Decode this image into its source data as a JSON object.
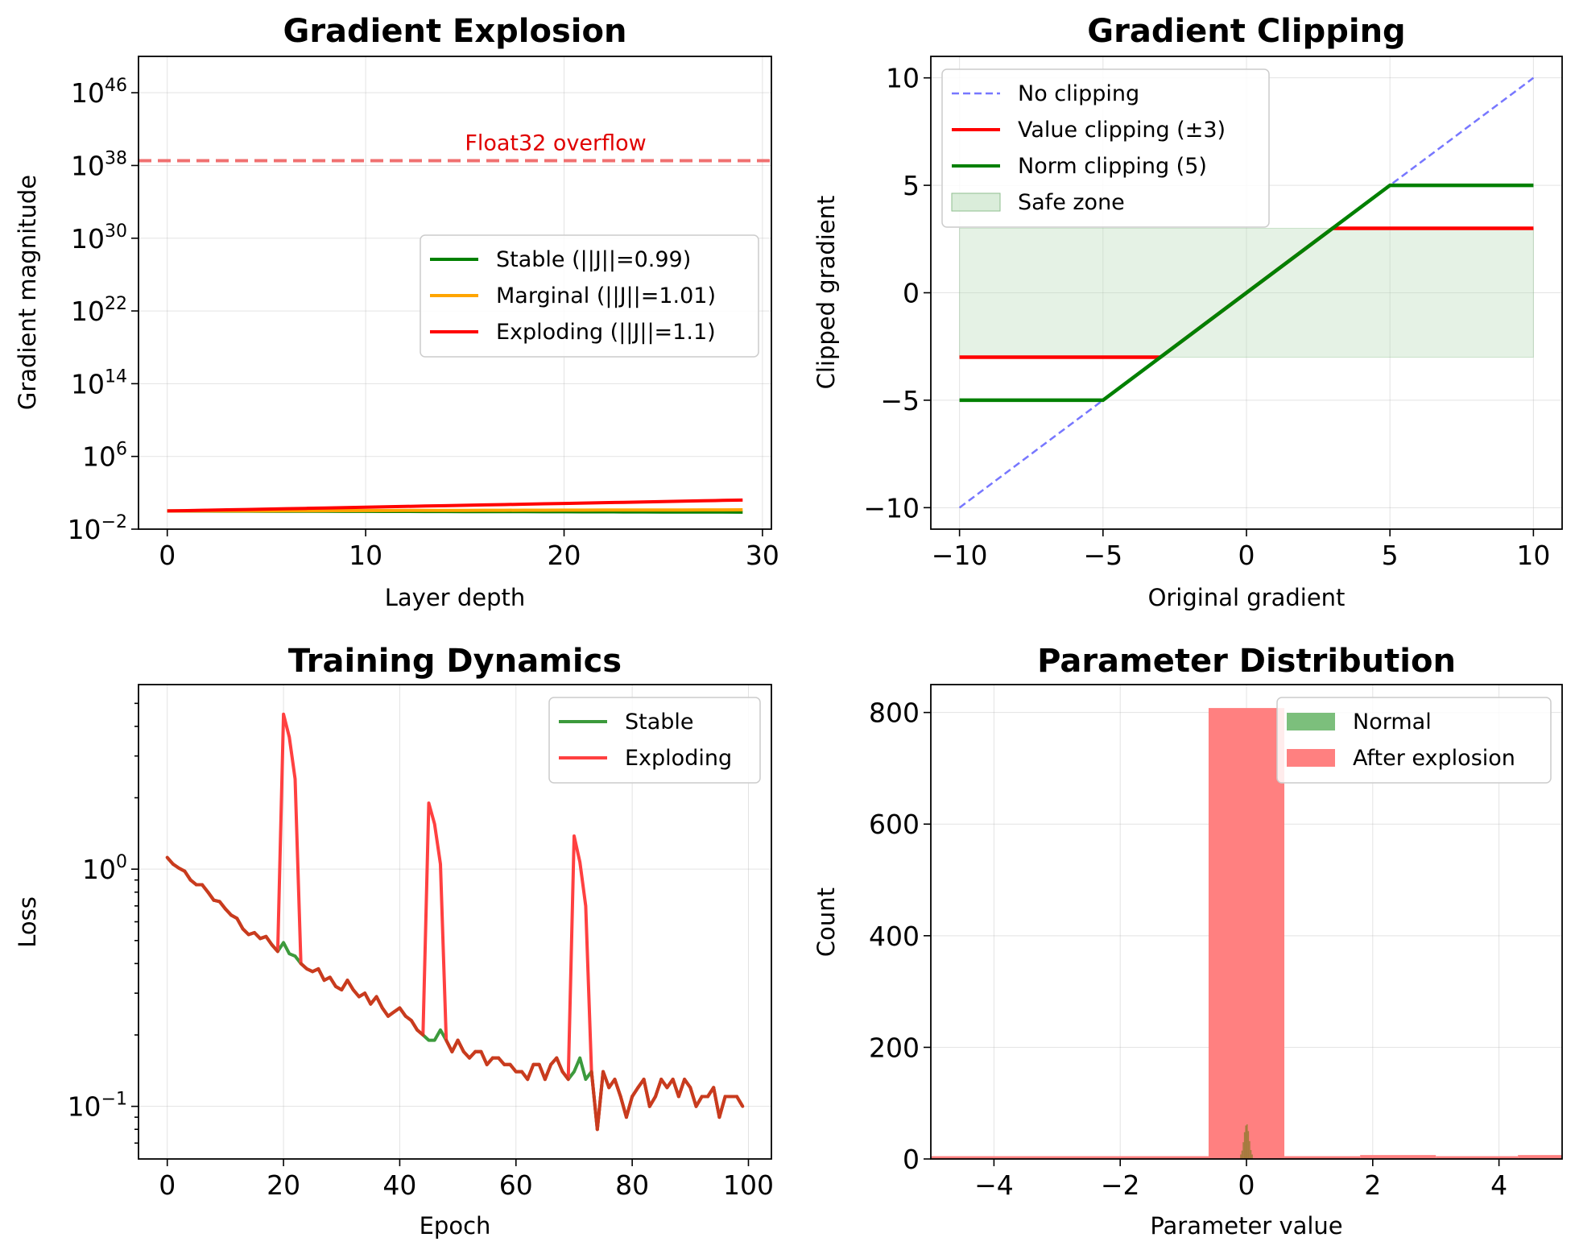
{
  "chart_data": [
    {
      "id": "explosion",
      "type": "line",
      "title": "Gradient Explosion",
      "xlabel": "Layer depth",
      "ylabel": "Gradient magnitude",
      "yscale": "log",
      "xlim": [
        -1.45,
        30.45
      ],
      "ylim_exp": [
        -2,
        50
      ],
      "xticks": [
        {
          "v": 0,
          "label": "0"
        },
        {
          "v": 10,
          "label": "10"
        },
        {
          "v": 20,
          "label": "20"
        },
        {
          "v": 30,
          "label": "30"
        }
      ],
      "yticks": [
        {
          "e": -2,
          "base": "10",
          "exp": "−2"
        },
        {
          "e": 6,
          "base": "10",
          "exp": "6"
        },
        {
          "e": 14,
          "base": "10",
          "exp": "14"
        },
        {
          "e": 22,
          "base": "10",
          "exp": "22"
        },
        {
          "e": 30,
          "base": "10",
          "exp": "30"
        },
        {
          "e": 38,
          "base": "10",
          "exp": "38"
        },
        {
          "e": 46,
          "base": "10",
          "exp": "46"
        }
      ],
      "x": [
        0,
        29
      ],
      "series": [
        {
          "name": "Stable (||J||=0.99)",
          "color": "#008000",
          "base": 0.99
        },
        {
          "name": "Marginal (||J||=1.01)",
          "color": "#ffa500",
          "base": 1.01
        },
        {
          "name": "Exploding (||J||=1.1)",
          "color": "#ff0000",
          "base": 1.1
        }
      ],
      "hline": {
        "value_exp": 38.53,
        "color": "#f07070",
        "label": "Float32 overflow",
        "label_x": 15
      },
      "legend": {
        "position": "center-right"
      }
    },
    {
      "id": "clipping",
      "type": "line",
      "title": "Gradient Clipping",
      "xlabel": "Original gradient",
      "ylabel": "Clipped gradient",
      "xlim": [
        -11,
        11
      ],
      "ylim": [
        -11,
        11
      ],
      "xticks": [
        {
          "v": -10,
          "label": "−10"
        },
        {
          "v": -5,
          "label": "−5"
        },
        {
          "v": 0,
          "label": "0"
        },
        {
          "v": 5,
          "label": "5"
        },
        {
          "v": 10,
          "label": "10"
        }
      ],
      "yticks": [
        {
          "v": -10,
          "label": "−10"
        },
        {
          "v": -5,
          "label": "−5"
        },
        {
          "v": 0,
          "label": "0"
        },
        {
          "v": 5,
          "label": "5"
        },
        {
          "v": 10,
          "label": "10"
        }
      ],
      "x": [
        -10,
        10
      ],
      "series": [
        {
          "name": "No clipping",
          "color": "#7777ff",
          "style": "dashed",
          "clip": null
        },
        {
          "name": "Value clipping (±3)",
          "color": "#ff0000",
          "style": "solid",
          "clip": 3
        },
        {
          "name": "Norm clipping (5)",
          "color": "#008000",
          "style": "solid",
          "clip": 5
        }
      ],
      "band": {
        "name": "Safe zone",
        "low": -3,
        "high": 3,
        "color": "#b5dbb5"
      },
      "legend": {
        "position": "top-left"
      }
    },
    {
      "id": "training",
      "type": "line",
      "title": "Training Dynamics",
      "xlabel": "Epoch",
      "ylabel": "Loss",
      "yscale": "log",
      "xlim": [
        -4.95,
        103.95
      ],
      "ylim": [
        0.06,
        6.0
      ],
      "xticks": [
        {
          "v": 0,
          "label": "0"
        },
        {
          "v": 20,
          "label": "20"
        },
        {
          "v": 40,
          "label": "40"
        },
        {
          "v": 60,
          "label": "60"
        },
        {
          "v": 80,
          "label": "80"
        },
        {
          "v": 100,
          "label": "100"
        }
      ],
      "yticks": [
        {
          "v": 0.1,
          "base": "10",
          "exp": "−1"
        },
        {
          "v": 1.0,
          "base": "10",
          "exp": "0"
        }
      ],
      "series": [
        {
          "name": "Stable",
          "color": "#3c9a3c",
          "values": [
            1.12,
            1.05,
            1.01,
            0.98,
            0.9,
            0.86,
            0.86,
            0.8,
            0.74,
            0.73,
            0.68,
            0.64,
            0.62,
            0.56,
            0.53,
            0.54,
            0.51,
            0.52,
            0.48,
            0.45,
            0.49,
            0.44,
            0.43,
            0.4,
            0.38,
            0.37,
            0.38,
            0.34,
            0.35,
            0.32,
            0.31,
            0.34,
            0.31,
            0.29,
            0.3,
            0.27,
            0.29,
            0.26,
            0.24,
            0.25,
            0.26,
            0.24,
            0.23,
            0.21,
            0.2,
            0.19,
            0.19,
            0.21,
            0.19,
            0.17,
            0.19,
            0.17,
            0.16,
            0.17,
            0.17,
            0.15,
            0.16,
            0.16,
            0.15,
            0.15,
            0.14,
            0.14,
            0.13,
            0.15,
            0.15,
            0.13,
            0.15,
            0.16,
            0.14,
            0.13,
            0.14,
            0.16,
            0.13,
            0.14,
            0.08,
            0.14,
            0.12,
            0.13,
            0.11,
            0.09,
            0.11,
            0.12,
            0.13,
            0.1,
            0.11,
            0.13,
            0.12,
            0.13,
            0.11,
            0.13,
            0.12,
            0.1,
            0.11,
            0.11,
            0.12,
            0.09,
            0.11,
            0.11,
            0.11,
            0.1
          ]
        },
        {
          "name": "Exploding",
          "color": "#ff4040",
          "values": [
            1.12,
            1.05,
            1.01,
            0.98,
            0.9,
            0.86,
            0.86,
            0.8,
            0.74,
            0.73,
            0.68,
            0.64,
            0.62,
            0.56,
            0.53,
            0.54,
            0.51,
            0.52,
            0.48,
            0.45,
            4.5,
            3.6,
            2.4,
            0.4,
            0.38,
            0.37,
            0.38,
            0.34,
            0.35,
            0.32,
            0.31,
            0.34,
            0.31,
            0.29,
            0.3,
            0.27,
            0.29,
            0.26,
            0.24,
            0.25,
            0.26,
            0.24,
            0.23,
            0.21,
            0.2,
            1.9,
            1.55,
            1.05,
            0.19,
            0.17,
            0.19,
            0.17,
            0.16,
            0.17,
            0.17,
            0.15,
            0.16,
            0.16,
            0.15,
            0.15,
            0.14,
            0.14,
            0.13,
            0.15,
            0.15,
            0.13,
            0.15,
            0.16,
            0.14,
            0.13,
            1.38,
            1.07,
            0.7,
            0.14,
            0.08,
            0.14,
            0.12,
            0.13,
            0.11,
            0.09,
            0.11,
            0.12,
            0.13,
            0.1,
            0.11,
            0.13,
            0.12,
            0.13,
            0.11,
            0.13,
            0.12,
            0.1,
            0.11,
            0.11,
            0.12,
            0.09,
            0.11,
            0.11,
            0.11,
            0.1
          ]
        }
      ],
      "overlap_color": "#c93b1e",
      "legend": {
        "position": "top-right"
      }
    },
    {
      "id": "params",
      "type": "bar",
      "title": "Parameter Distribution",
      "xlabel": "Parameter value",
      "ylabel": "Count",
      "xlim": [
        -5,
        5
      ],
      "ylim": [
        0,
        850
      ],
      "xticks": [
        {
          "v": -4,
          "label": "−4"
        },
        {
          "v": -2,
          "label": "−2"
        },
        {
          "v": 0,
          "label": "0"
        },
        {
          "v": 2,
          "label": "2"
        },
        {
          "v": 4,
          "label": "4"
        }
      ],
      "yticks": [
        {
          "v": 0,
          "label": "0"
        },
        {
          "v": 200,
          "label": "200"
        },
        {
          "v": 400,
          "label": "400"
        },
        {
          "v": 600,
          "label": "600"
        },
        {
          "v": 800,
          "label": "800"
        }
      ],
      "series": [
        {
          "name": "Normal",
          "color": "#7cbf7c",
          "bins": [
            [
              -0.1,
              -0.08,
              8
            ],
            [
              -0.08,
              -0.06,
              15
            ],
            [
              -0.06,
              -0.04,
              30
            ],
            [
              -0.04,
              -0.02,
              48
            ],
            [
              -0.02,
              0.0,
              60
            ],
            [
              0.0,
              0.02,
              62
            ],
            [
              0.02,
              0.04,
              50
            ],
            [
              0.04,
              0.06,
              32
            ],
            [
              0.06,
              0.08,
              16
            ],
            [
              0.08,
              0.1,
              8
            ]
          ]
        },
        {
          "name": "After explosion",
          "color": "#ff8080",
          "bins": [
            [
              -5.0,
              -0.6,
              5
            ],
            [
              -0.6,
              0.6,
              808
            ],
            [
              0.6,
              1.8,
              5
            ],
            [
              1.8,
              3.0,
              7
            ],
            [
              3.0,
              4.3,
              5
            ],
            [
              4.3,
              5.0,
              7
            ]
          ]
        }
      ],
      "legend": {
        "position": "top-right"
      }
    }
  ]
}
